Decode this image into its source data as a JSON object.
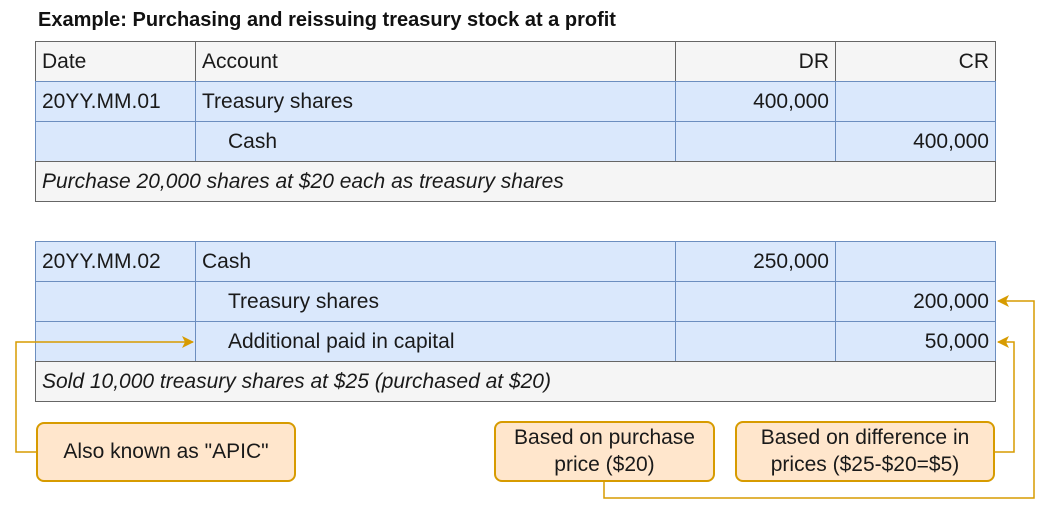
{
  "title": "Example: Purchasing and reissuing treasury stock at a profit",
  "table1": {
    "headers": {
      "date": "Date",
      "account": "Account",
      "dr": "DR",
      "cr": "CR"
    },
    "rows": [
      {
        "date": "20YY.MM.01",
        "account": "Treasury shares",
        "dr": "400,000",
        "cr": ""
      },
      {
        "date": "",
        "account": "Cash",
        "dr": "",
        "cr": "400,000"
      }
    ],
    "note": "Purchase 20,000 shares at $20 each as treasury shares"
  },
  "table2": {
    "rows": [
      {
        "date": "20YY.MM.02",
        "account": "Cash",
        "dr": "250,000",
        "cr": ""
      },
      {
        "date": "",
        "account": "Treasury shares",
        "dr": "",
        "cr": "200,000"
      },
      {
        "date": "",
        "account": "Additional paid in capital",
        "dr": "",
        "cr": "50,000"
      }
    ],
    "note": "Sold 10,000 treasury shares at $25 (purchased at $20)"
  },
  "callouts": {
    "apic": "Also known as \"APIC\"",
    "purchase_price_line1": "Based on purchase",
    "purchase_price_line2": "price ($20)",
    "difference_line1": "Based on difference in",
    "difference_line2": "prices ($25-$20=$5)"
  },
  "colors": {
    "header_fill": "#f5f5f5",
    "row_fill": "#dae8fc",
    "row_border": "#6c8ebf",
    "callout_fill": "#ffe6cc",
    "callout_border": "#d79b00"
  }
}
